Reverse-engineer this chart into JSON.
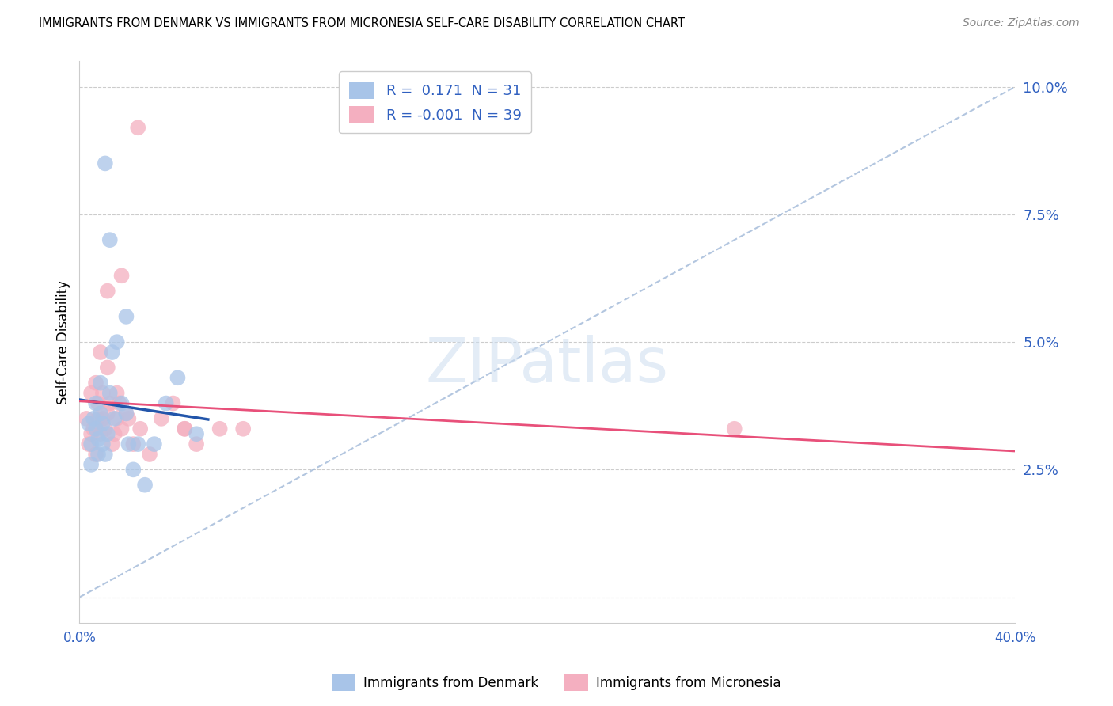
{
  "title": "IMMIGRANTS FROM DENMARK VS IMMIGRANTS FROM MICRONESIA SELF-CARE DISABILITY CORRELATION CHART",
  "source": "Source: ZipAtlas.com",
  "ylabel": "Self-Care Disability",
  "xlim": [
    0.0,
    0.4
  ],
  "ylim": [
    -0.005,
    0.105
  ],
  "yticks": [
    0.0,
    0.025,
    0.05,
    0.075,
    0.1
  ],
  "ytick_labels": [
    "",
    "2.5%",
    "5.0%",
    "7.5%",
    "10.0%"
  ],
  "color_denmark": "#a8c4e8",
  "color_micronesia": "#f4afc0",
  "trendline_denmark_color": "#2255aa",
  "trendline_micronesia_color": "#e8507a",
  "diag_line_color": "#a0b8d8",
  "denmark_r": 0.171,
  "micronesia_r": -0.001,
  "denmark_n": 31,
  "micronesia_n": 39,
  "dk_x": [
    0.004,
    0.005,
    0.005,
    0.006,
    0.007,
    0.007,
    0.008,
    0.008,
    0.009,
    0.009,
    0.01,
    0.01,
    0.011,
    0.012,
    0.013,
    0.014,
    0.015,
    0.016,
    0.018,
    0.02,
    0.021,
    0.023,
    0.025,
    0.028,
    0.032,
    0.037,
    0.042,
    0.05,
    0.011,
    0.013,
    0.02
  ],
  "dk_y": [
    0.034,
    0.03,
    0.026,
    0.035,
    0.033,
    0.038,
    0.028,
    0.031,
    0.042,
    0.036,
    0.03,
    0.034,
    0.028,
    0.032,
    0.04,
    0.048,
    0.035,
    0.05,
    0.038,
    0.036,
    0.03,
    0.025,
    0.03,
    0.022,
    0.03,
    0.038,
    0.043,
    0.032,
    0.085,
    0.07,
    0.055
  ],
  "mc_x": [
    0.003,
    0.004,
    0.005,
    0.005,
    0.006,
    0.007,
    0.007,
    0.008,
    0.008,
    0.009,
    0.009,
    0.01,
    0.01,
    0.011,
    0.012,
    0.012,
    0.013,
    0.014,
    0.015,
    0.016,
    0.016,
    0.017,
    0.018,
    0.02,
    0.021,
    0.023,
    0.026,
    0.03,
    0.035,
    0.04,
    0.045,
    0.05,
    0.06,
    0.07,
    0.28,
    0.012,
    0.018,
    0.025,
    0.045
  ],
  "mc_y": [
    0.035,
    0.03,
    0.04,
    0.032,
    0.033,
    0.028,
    0.042,
    0.035,
    0.038,
    0.048,
    0.032,
    0.04,
    0.035,
    0.033,
    0.036,
    0.045,
    0.038,
    0.03,
    0.032,
    0.04,
    0.035,
    0.038,
    0.033,
    0.036,
    0.035,
    0.03,
    0.033,
    0.028,
    0.035,
    0.038,
    0.033,
    0.03,
    0.033,
    0.033,
    0.033,
    0.06,
    0.063,
    0.092,
    0.033
  ]
}
